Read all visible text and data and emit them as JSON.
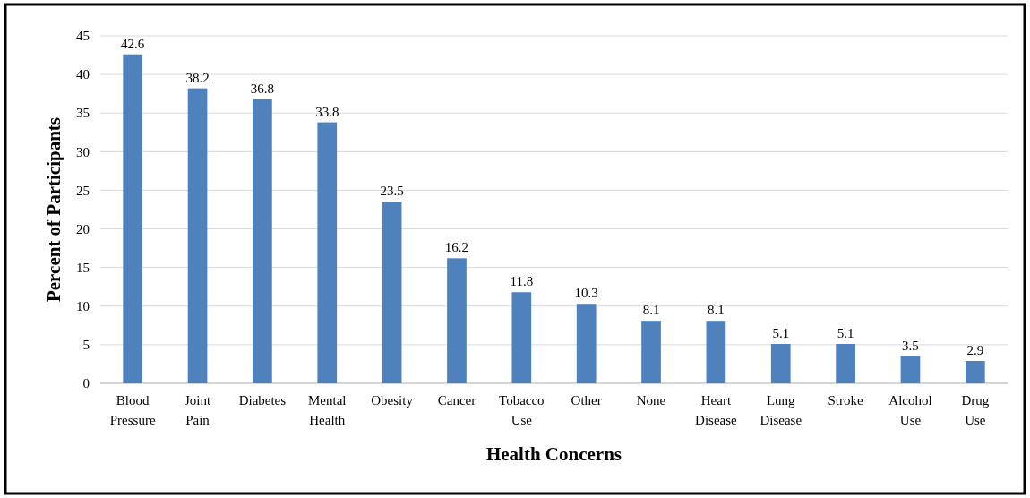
{
  "chart_data": {
    "type": "bar",
    "xlabel": "Health Concerns",
    "ylabel": "Percent of Participants",
    "categories": [
      "Blood Pressure",
      "Joint Pain",
      "Diabetes",
      "Mental Health",
      "Obesity",
      "Cancer",
      "Tobacco Use",
      "Other",
      "None",
      "Heart Disease",
      "Lung Disease",
      "Stroke",
      "Alcohol Use",
      "Drug Use"
    ],
    "values": [
      42.6,
      38.2,
      36.8,
      33.8,
      23.5,
      16.2,
      11.8,
      10.3,
      8.1,
      8.1,
      5.1,
      5.1,
      3.5,
      2.9
    ],
    "color": "#4f81bd",
    "ylim": [
      0,
      45
    ],
    "yticks": [
      0,
      5,
      10,
      15,
      20,
      25,
      30,
      35,
      40,
      45
    ],
    "grid": "y",
    "data_labels": true
  }
}
